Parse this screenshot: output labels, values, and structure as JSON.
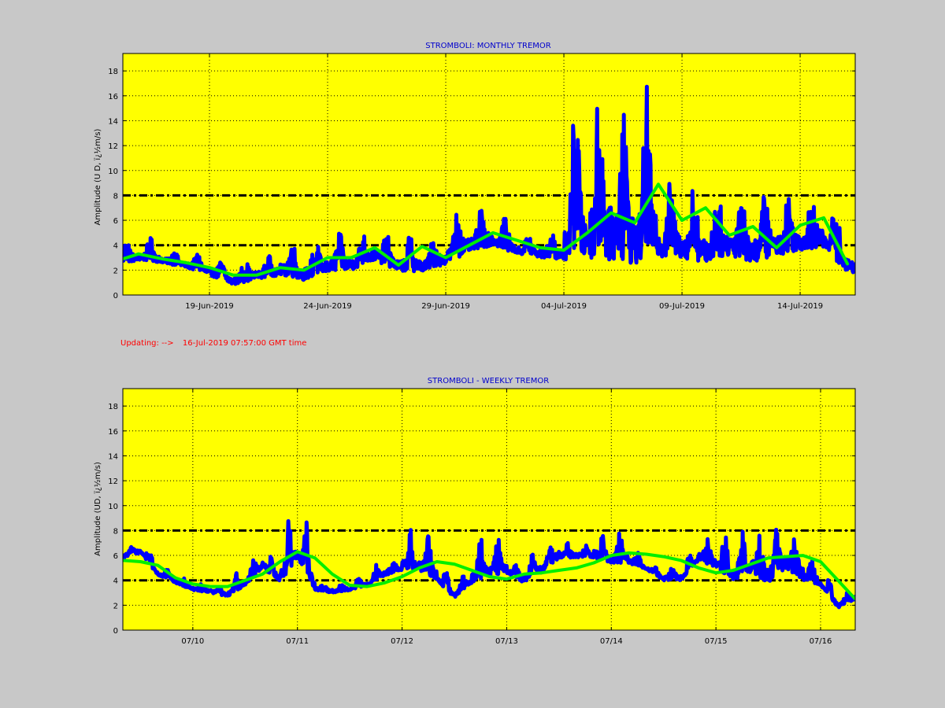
{
  "status": {
    "prefix": "Updating:  -->",
    "timestamp": "16-Jul-2019 07:57:00 GMT time"
  },
  "chart_data": [
    {
      "type": "scatter",
      "title": "STROMBOLI: MONTHLY TREMOR",
      "xlabel": "",
      "ylabel": "Amplitude   (U D,  ï¿½m/s)",
      "x_unit": "date",
      "xlim": [
        "2019-06-15T08:00",
        "2019-07-16T07:57"
      ],
      "ylim": [
        0,
        19.4
      ],
      "yticks": [
        0,
        2,
        4,
        6,
        8,
        10,
        12,
        14,
        16,
        18
      ],
      "xticks": [
        {
          "x": "2019-06-19",
          "label": "19-Jun-2019"
        },
        {
          "x": "2019-06-24",
          "label": "24-Jun-2019"
        },
        {
          "x": "2019-06-29",
          "label": "29-Jun-2019"
        },
        {
          "x": "2019-07-04",
          "label": "04-Jul-2019"
        },
        {
          "x": "2019-07-09",
          "label": "09-Jul-2019"
        },
        {
          "x": "2019-07-14",
          "label": "14-Jul-2019"
        }
      ],
      "grid": true,
      "thresholds": [
        4,
        8
      ],
      "colors": {
        "background": "#ffff00",
        "raw": "#0000ff",
        "smooth": "#00ee00",
        "threshold": "#000000"
      },
      "series": [
        {
          "role": "raw",
          "x": [
            "2019-06-15",
            "2019-06-16",
            "2019-06-17",
            "2019-06-18",
            "2019-06-19",
            "2019-06-20",
            "2019-06-21",
            "2019-06-22",
            "2019-06-23",
            "2019-06-24",
            "2019-06-25",
            "2019-06-26",
            "2019-06-27",
            "2019-06-28",
            "2019-06-29",
            "2019-06-30",
            "2019-07-01",
            "2019-07-02",
            "2019-07-03",
            "2019-07-04",
            "2019-07-05",
            "2019-07-06",
            "2019-07-07",
            "2019-07-08",
            "2019-07-09",
            "2019-07-10",
            "2019-07-11",
            "2019-07-12",
            "2019-07-13",
            "2019-07-14",
            "2019-07-15",
            "2019-07-16"
          ],
          "lower": [
            2.3,
            2.8,
            2.6,
            2.2,
            1.6,
            0.8,
            1.3,
            1.6,
            1.2,
            1.8,
            2.0,
            2.8,
            1.9,
            1.9,
            2.5,
            3.5,
            4.0,
            3.3,
            3.0,
            2.8,
            3.0,
            2.8,
            2.5,
            3.0,
            3.0,
            2.6,
            3.2,
            2.6,
            3.2,
            3.6,
            3.8,
            1.8
          ],
          "upper": [
            3.3,
            4.6,
            3.6,
            3.4,
            2.8,
            2.6,
            2.9,
            3.2,
            4.5,
            3.9,
            5.0,
            4.6,
            4.9,
            4.0,
            4.8,
            7.0,
            6.2,
            5.0,
            4.6,
            5.2,
            17.6,
            12.4,
            16.9,
            8.2,
            9.2,
            6.8,
            9.0,
            7.6,
            8.3,
            7.2,
            8.2,
            3.1
          ]
        },
        {
          "role": "smooth",
          "x": [
            "2019-06-15",
            "2019-06-16",
            "2019-06-17",
            "2019-06-18",
            "2019-06-19",
            "2019-06-20",
            "2019-06-21",
            "2019-06-22",
            "2019-06-23",
            "2019-06-24",
            "2019-06-25",
            "2019-06-26",
            "2019-06-27",
            "2019-06-28",
            "2019-06-29",
            "2019-06-30",
            "2019-07-01",
            "2019-07-02",
            "2019-07-03",
            "2019-07-04",
            "2019-07-05",
            "2019-07-06",
            "2019-07-07",
            "2019-07-08",
            "2019-07-09",
            "2019-07-10",
            "2019-07-11",
            "2019-07-12",
            "2019-07-13",
            "2019-07-14",
            "2019-07-15",
            "2019-07-16"
          ],
          "values": [
            2.7,
            3.3,
            2.9,
            2.6,
            2.2,
            1.6,
            1.6,
            2.2,
            2.0,
            3.0,
            3.0,
            3.8,
            2.4,
            3.9,
            3.0,
            4.0,
            5.0,
            4.4,
            3.8,
            3.6,
            5.0,
            6.6,
            5.8,
            8.9,
            6.0,
            7.0,
            4.8,
            5.5,
            3.8,
            5.6,
            6.2,
            2.5
          ]
        }
      ]
    },
    {
      "type": "scatter",
      "title": "STROMBOLI - WEEKLY TREMOR",
      "xlabel": "",
      "ylabel": "Amplitude (UD, ï¿½m/s)",
      "x_unit": "date",
      "xlim": [
        "2019-07-09T07:57",
        "2019-07-16T07:57"
      ],
      "ylim": [
        0,
        19.4
      ],
      "yticks": [
        0,
        2,
        4,
        6,
        8,
        10,
        12,
        14,
        16,
        18
      ],
      "xticks": [
        {
          "x": "2019-07-10",
          "label": "07/10"
        },
        {
          "x": "2019-07-11",
          "label": "07/11"
        },
        {
          "x": "2019-07-12",
          "label": "07/12"
        },
        {
          "x": "2019-07-13",
          "label": "07/13"
        },
        {
          "x": "2019-07-14",
          "label": "07/14"
        },
        {
          "x": "2019-07-15",
          "label": "07/15"
        },
        {
          "x": "2019-07-16",
          "label": "07/16"
        }
      ],
      "grid": true,
      "thresholds": [
        4,
        8
      ],
      "colors": {
        "background": "#ffff00",
        "raw": "#0000ff",
        "smooth": "#00ee00",
        "threshold": "#000000"
      },
      "series": [
        {
          "role": "raw",
          "x": [
            "2019-07-09T08:00",
            "2019-07-09T12:00",
            "2019-07-09T16:00",
            "2019-07-09T20:00",
            "2019-07-10T00:00",
            "2019-07-10T04:00",
            "2019-07-10T08:00",
            "2019-07-10T12:00",
            "2019-07-10T16:00",
            "2019-07-10T20:00",
            "2019-07-11T00:00",
            "2019-07-11T04:00",
            "2019-07-11T08:00",
            "2019-07-11T12:00",
            "2019-07-11T16:00",
            "2019-07-11T20:00",
            "2019-07-12T00:00",
            "2019-07-12T04:00",
            "2019-07-12T08:00",
            "2019-07-12T12:00",
            "2019-07-12T16:00",
            "2019-07-12T20:00",
            "2019-07-13T00:00",
            "2019-07-13T04:00",
            "2019-07-13T08:00",
            "2019-07-13T12:00",
            "2019-07-13T16:00",
            "2019-07-13T20:00",
            "2019-07-14T00:00",
            "2019-07-14T04:00",
            "2019-07-14T08:00",
            "2019-07-14T12:00",
            "2019-07-14T16:00",
            "2019-07-14T20:00",
            "2019-07-15T00:00",
            "2019-07-15T04:00",
            "2019-07-15T08:00",
            "2019-07-15T12:00",
            "2019-07-15T16:00",
            "2019-07-15T20:00",
            "2019-07-16T00:00",
            "2019-07-16T04:00",
            "2019-07-16T07:57"
          ],
          "lower": [
            5.8,
            6.2,
            4.4,
            3.8,
            3.2,
            3.0,
            2.7,
            3.6,
            5.0,
            3.8,
            5.8,
            3.2,
            3.0,
            3.2,
            3.6,
            4.4,
            4.8,
            4.8,
            4.0,
            2.6,
            3.8,
            4.4,
            4.6,
            3.8,
            4.6,
            5.8,
            5.8,
            5.8,
            5.4,
            5.4,
            4.8,
            4.0,
            4.0,
            5.6,
            5.0,
            4.0,
            4.6,
            3.8,
            5.0,
            4.0,
            3.6,
            1.8,
            2.5
          ],
          "upper": [
            6.8,
            6.7,
            5.0,
            4.2,
            3.8,
            3.6,
            3.4,
            4.6,
            6.0,
            5.8,
            8.9,
            3.8,
            3.8,
            3.6,
            4.2,
            5.4,
            5.8,
            8.2,
            4.8,
            3.4,
            4.6,
            7.9,
            5.6,
            5.0,
            6.8,
            6.6,
            7.0,
            6.6,
            8.0,
            6.5,
            5.4,
            4.8,
            5.2,
            6.2,
            8.0,
            5.4,
            8.0,
            7.0,
            8.3,
            6.2,
            4.2,
            2.6,
            3.1
          ]
        },
        {
          "role": "smooth",
          "x": [
            "2019-07-09T08:00",
            "2019-07-09T12:00",
            "2019-07-09T16:00",
            "2019-07-09T20:00",
            "2019-07-10T00:00",
            "2019-07-10T04:00",
            "2019-07-10T08:00",
            "2019-07-10T12:00",
            "2019-07-10T16:00",
            "2019-07-10T20:00",
            "2019-07-11T00:00",
            "2019-07-11T04:00",
            "2019-07-11T08:00",
            "2019-07-11T12:00",
            "2019-07-11T16:00",
            "2019-07-11T20:00",
            "2019-07-12T00:00",
            "2019-07-12T04:00",
            "2019-07-12T08:00",
            "2019-07-12T12:00",
            "2019-07-12T16:00",
            "2019-07-12T20:00",
            "2019-07-13T00:00",
            "2019-07-13T04:00",
            "2019-07-13T08:00",
            "2019-07-13T12:00",
            "2019-07-13T16:00",
            "2019-07-13T20:00",
            "2019-07-14T00:00",
            "2019-07-14T04:00",
            "2019-07-14T08:00",
            "2019-07-14T12:00",
            "2019-07-14T16:00",
            "2019-07-14T20:00",
            "2019-07-15T00:00",
            "2019-07-15T04:00",
            "2019-07-15T08:00",
            "2019-07-15T12:00",
            "2019-07-15T16:00",
            "2019-07-15T20:00",
            "2019-07-16T00:00",
            "2019-07-16T04:00",
            "2019-07-16T07:57"
          ],
          "values": [
            5.6,
            5.5,
            5.2,
            4.2,
            3.7,
            3.5,
            3.5,
            4.0,
            4.5,
            5.5,
            6.3,
            5.8,
            4.5,
            3.6,
            3.5,
            3.8,
            4.3,
            5.0,
            5.5,
            5.3,
            4.8,
            4.3,
            4.1,
            4.5,
            4.6,
            4.8,
            5.0,
            5.4,
            6.0,
            6.2,
            6.1,
            5.9,
            5.6,
            5.0,
            4.6,
            4.8,
            5.3,
            5.8,
            5.9,
            6.0,
            5.5,
            4.0,
            2.5
          ]
        }
      ]
    }
  ]
}
